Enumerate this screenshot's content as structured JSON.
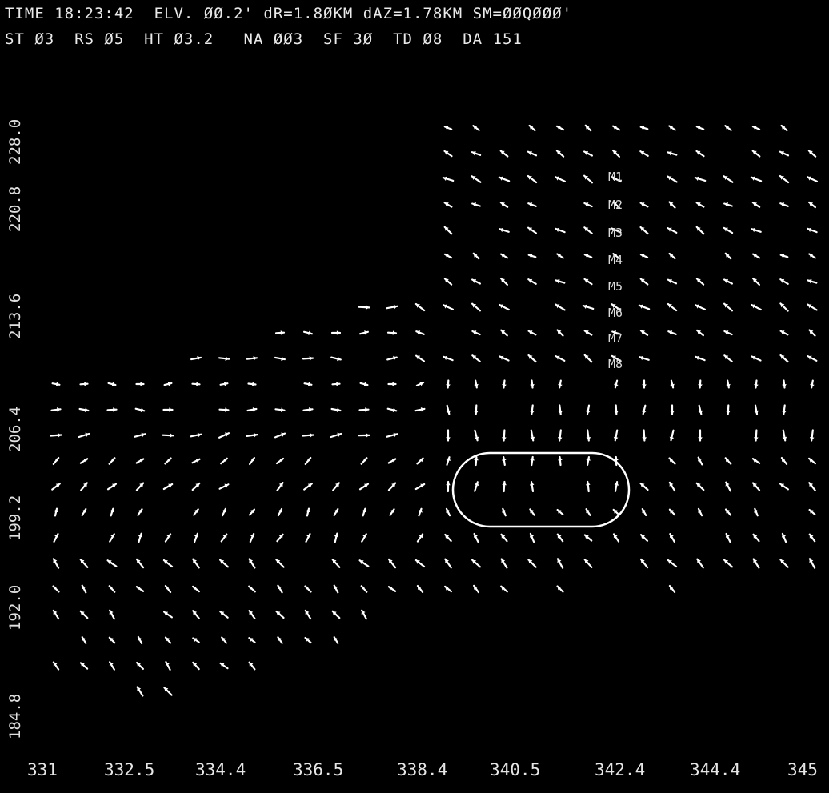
{
  "header": {
    "line1": "TIME 18:23:42  ELV. ØØ.2' dR=1.8ØKM dAZ=1.78KM SM=ØØQØØØ'",
    "line2": "ST Ø3  RS Ø5  HT Ø3.2   NA ØØ3  SF 3Ø  TD Ø8  DA 151",
    "line3": "",
    "line4": "",
    "line5": ""
  },
  "y_axis_ticks": [
    "228.0",
    "220.8",
    "213.6",
    "206.4",
    "199.2",
    "192.0",
    "184.8"
  ],
  "x_axis_ticks": [
    "331",
    "332.5",
    "334.4",
    "336.5",
    "338.4",
    "340.5",
    "342.4",
    "344.4",
    "345"
  ],
  "markers": [
    "M1",
    "M2",
    "M3",
    "M4",
    "M5",
    "M6",
    "M7",
    "M8"
  ],
  "colors": {
    "background": "#000000",
    "foreground": "#ffffff"
  },
  "annotation": "ellipse-outline"
}
